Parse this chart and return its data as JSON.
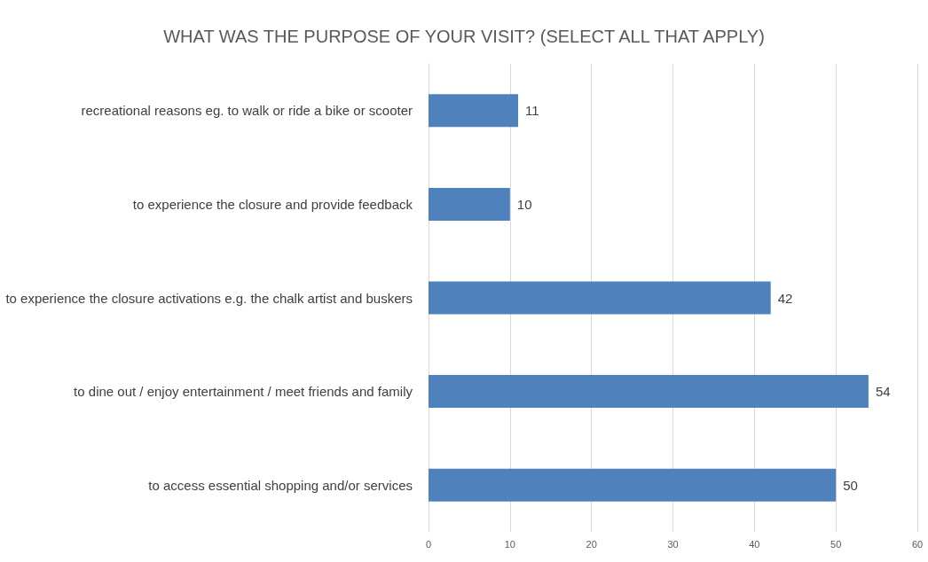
{
  "chart_data": {
    "type": "bar",
    "orientation": "horizontal",
    "title": "WHAT WAS THE PURPOSE OF YOUR VISIT? (SELECT ALL THAT APPLY)",
    "categories": [
      "recreational reasons eg. to walk or ride a bike or scooter",
      "to experience the closure and provide feedback",
      "to experience the closure activations e.g. the chalk artist and buskers",
      "to dine out / enjoy entertainment / meet friends and family",
      "to access essential shopping and/or services"
    ],
    "values": [
      11,
      10,
      42,
      54,
      50
    ],
    "color": "#4f81bd",
    "xlim": [
      0,
      60
    ],
    "xticks": [
      0,
      10,
      20,
      30,
      40,
      50,
      60
    ],
    "grid": "x",
    "data_labels": true
  }
}
